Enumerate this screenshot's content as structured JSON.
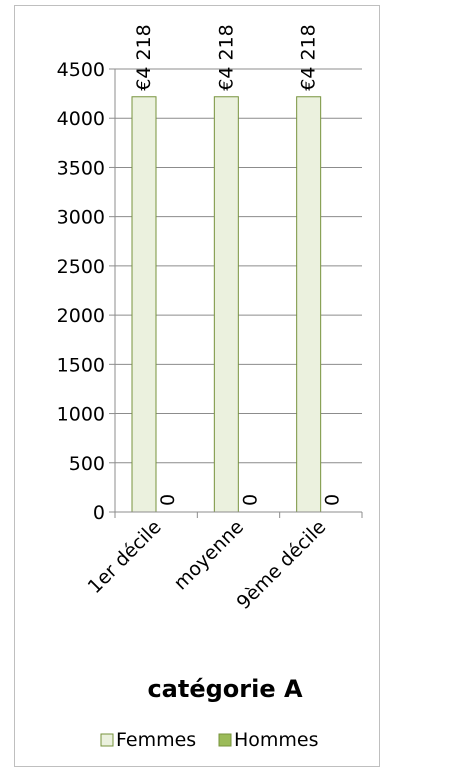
{
  "chart_data": {
    "type": "bar",
    "title": "catégorie  A",
    "categories": [
      "1er décile",
      "moyenne",
      "9ème décile"
    ],
    "series": [
      {
        "name": "Femmes",
        "values": [
          4218,
          4218,
          4218
        ],
        "labels": [
          "€4 218",
          "€4 218",
          "€4 218"
        ],
        "fill": "#ebf1de",
        "stroke": "#77933c"
      },
      {
        "name": "Hommes",
        "values": [
          0,
          0,
          0
        ],
        "labels": [
          "0",
          "0",
          "0"
        ],
        "fill": "#9bbb59",
        "stroke": "#77933c"
      }
    ],
    "yticks": [
      "0",
      "500",
      "1000",
      "1500",
      "2000",
      "2500",
      "3000",
      "3500",
      "4000",
      "4500"
    ],
    "ylim": [
      0,
      4500
    ],
    "grid": true,
    "legend_position": "bottom"
  }
}
